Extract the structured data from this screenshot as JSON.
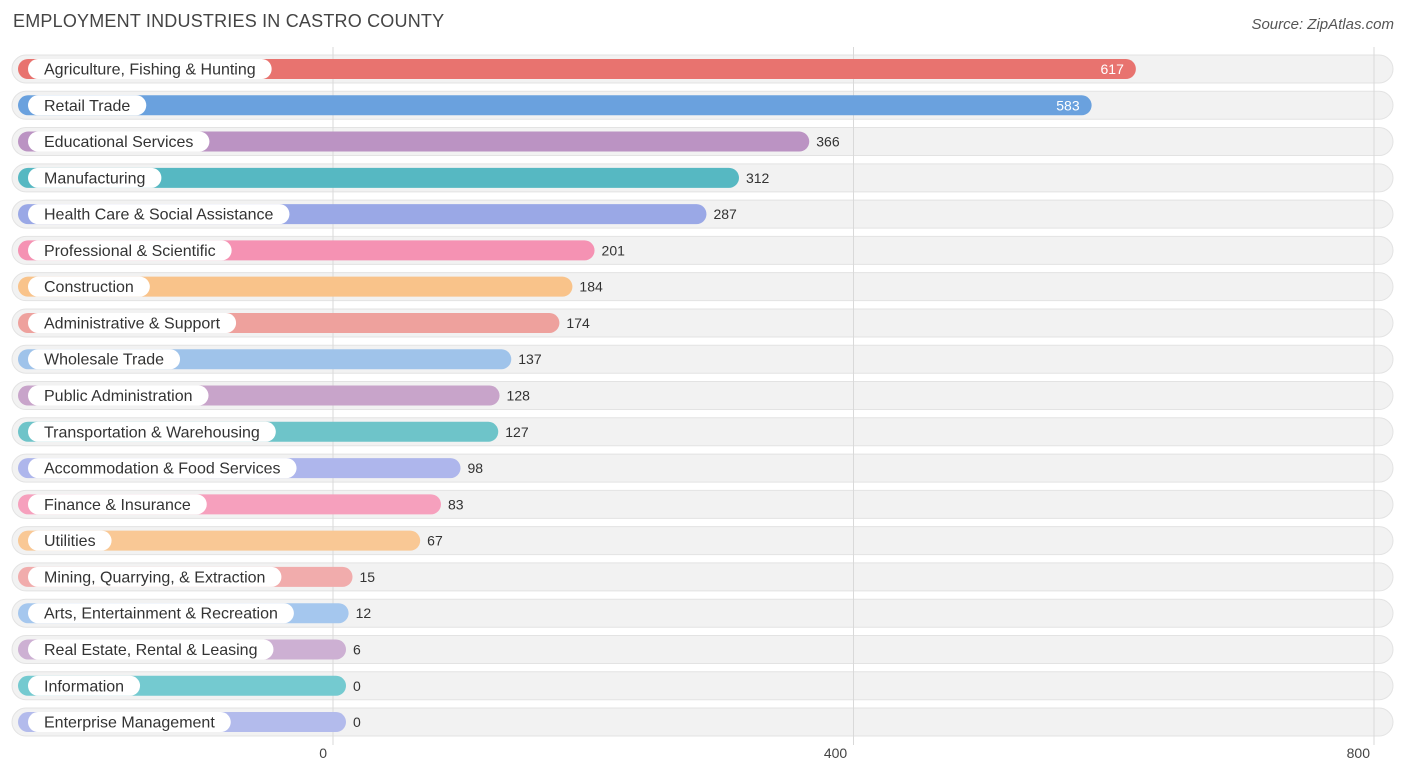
{
  "header": {
    "title": "EMPLOYMENT INDUSTRIES IN CASTRO COUNTY",
    "source": "Source: ZipAtlas.com"
  },
  "chart_data": {
    "type": "bar",
    "orientation": "horizontal",
    "title": "EMPLOYMENT INDUSTRIES IN CASTRO COUNTY",
    "xlim": [
      0,
      800
    ],
    "xticks": [
      0,
      400,
      800
    ],
    "grid": true,
    "categories": [
      "Agriculture, Fishing & Hunting",
      "Retail Trade",
      "Educational Services",
      "Manufacturing",
      "Health Care & Social Assistance",
      "Professional & Scientific",
      "Construction",
      "Administrative & Support",
      "Wholesale Trade",
      "Public Administration",
      "Transportation & Warehousing",
      "Accommodation & Food Services",
      "Finance & Insurance",
      "Utilities",
      "Mining, Quarrying, & Extraction",
      "Arts, Entertainment & Recreation",
      "Real Estate, Rental & Leasing",
      "Information",
      "Enterprise Management"
    ],
    "values": [
      617,
      583,
      366,
      312,
      287,
      201,
      184,
      174,
      137,
      128,
      127,
      98,
      83,
      67,
      15,
      12,
      6,
      0,
      0
    ],
    "colors": [
      "#e8736f",
      "#6aa1de",
      "#bb93c3",
      "#56b8c2",
      "#9aa8e6",
      "#f592b3",
      "#f9c38a",
      "#eea19d",
      "#9fc3ea",
      "#c8a4ca",
      "#6ec4c9",
      "#aeb6ec",
      "#f6a0bd",
      "#f9c895",
      "#f1acac",
      "#a5c7ee",
      "#cdb0d3",
      "#74cad0",
      "#b3bbec"
    ]
  }
}
